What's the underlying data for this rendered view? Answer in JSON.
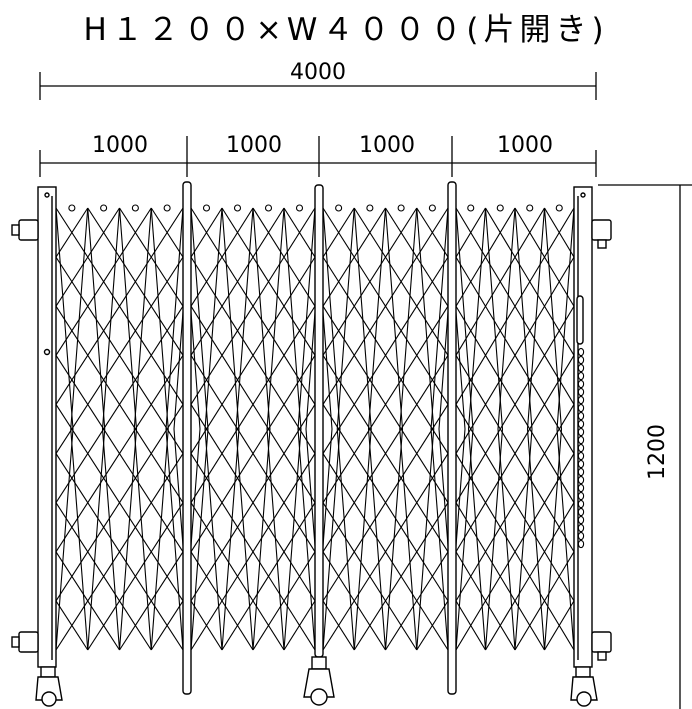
{
  "title": "H１２００×W４０００(片開き)",
  "overall_width_label": "4000",
  "segment_labels": [
    "1000",
    "1000",
    "1000",
    "1000"
  ],
  "height_label": "1200",
  "diagram": {
    "subject": "single-opening accordion (scissor) gate, front elevation",
    "sections": 4,
    "casters": 3,
    "line_color": "#000000"
  }
}
